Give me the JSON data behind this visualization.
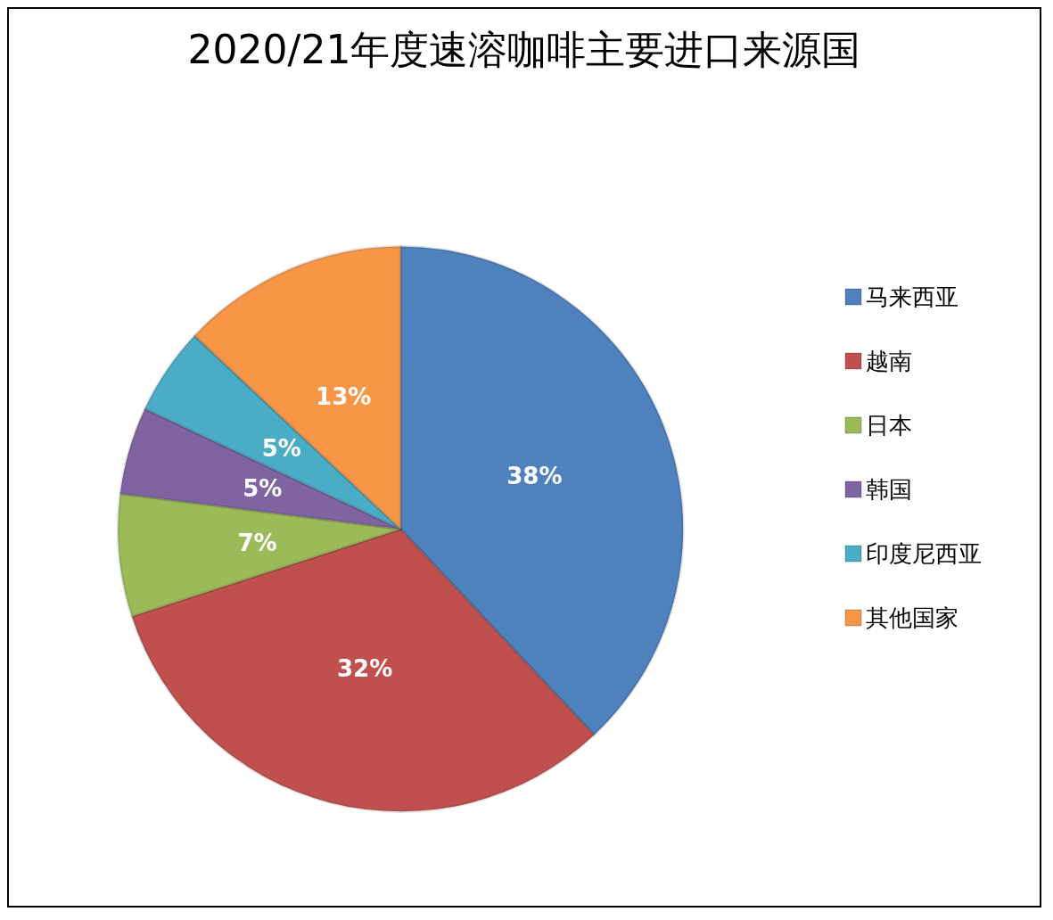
{
  "chart_data": {
    "type": "pie",
    "title": "2020/21年度速溶咖啡主要进口来源国",
    "categories": [
      "马来西亚",
      "越南",
      "日本",
      "韩国",
      "印度尼西亚",
      "其他国家"
    ],
    "values": [
      38,
      32,
      7,
      5,
      5,
      13
    ],
    "value_labels": [
      "38%",
      "32%",
      "7%",
      "5%",
      "5%",
      "13%"
    ],
    "colors": [
      "#4f81bd",
      "#c0504d",
      "#9bbb59",
      "#8064a2",
      "#4bacc6",
      "#f79646"
    ],
    "legend": "right"
  }
}
